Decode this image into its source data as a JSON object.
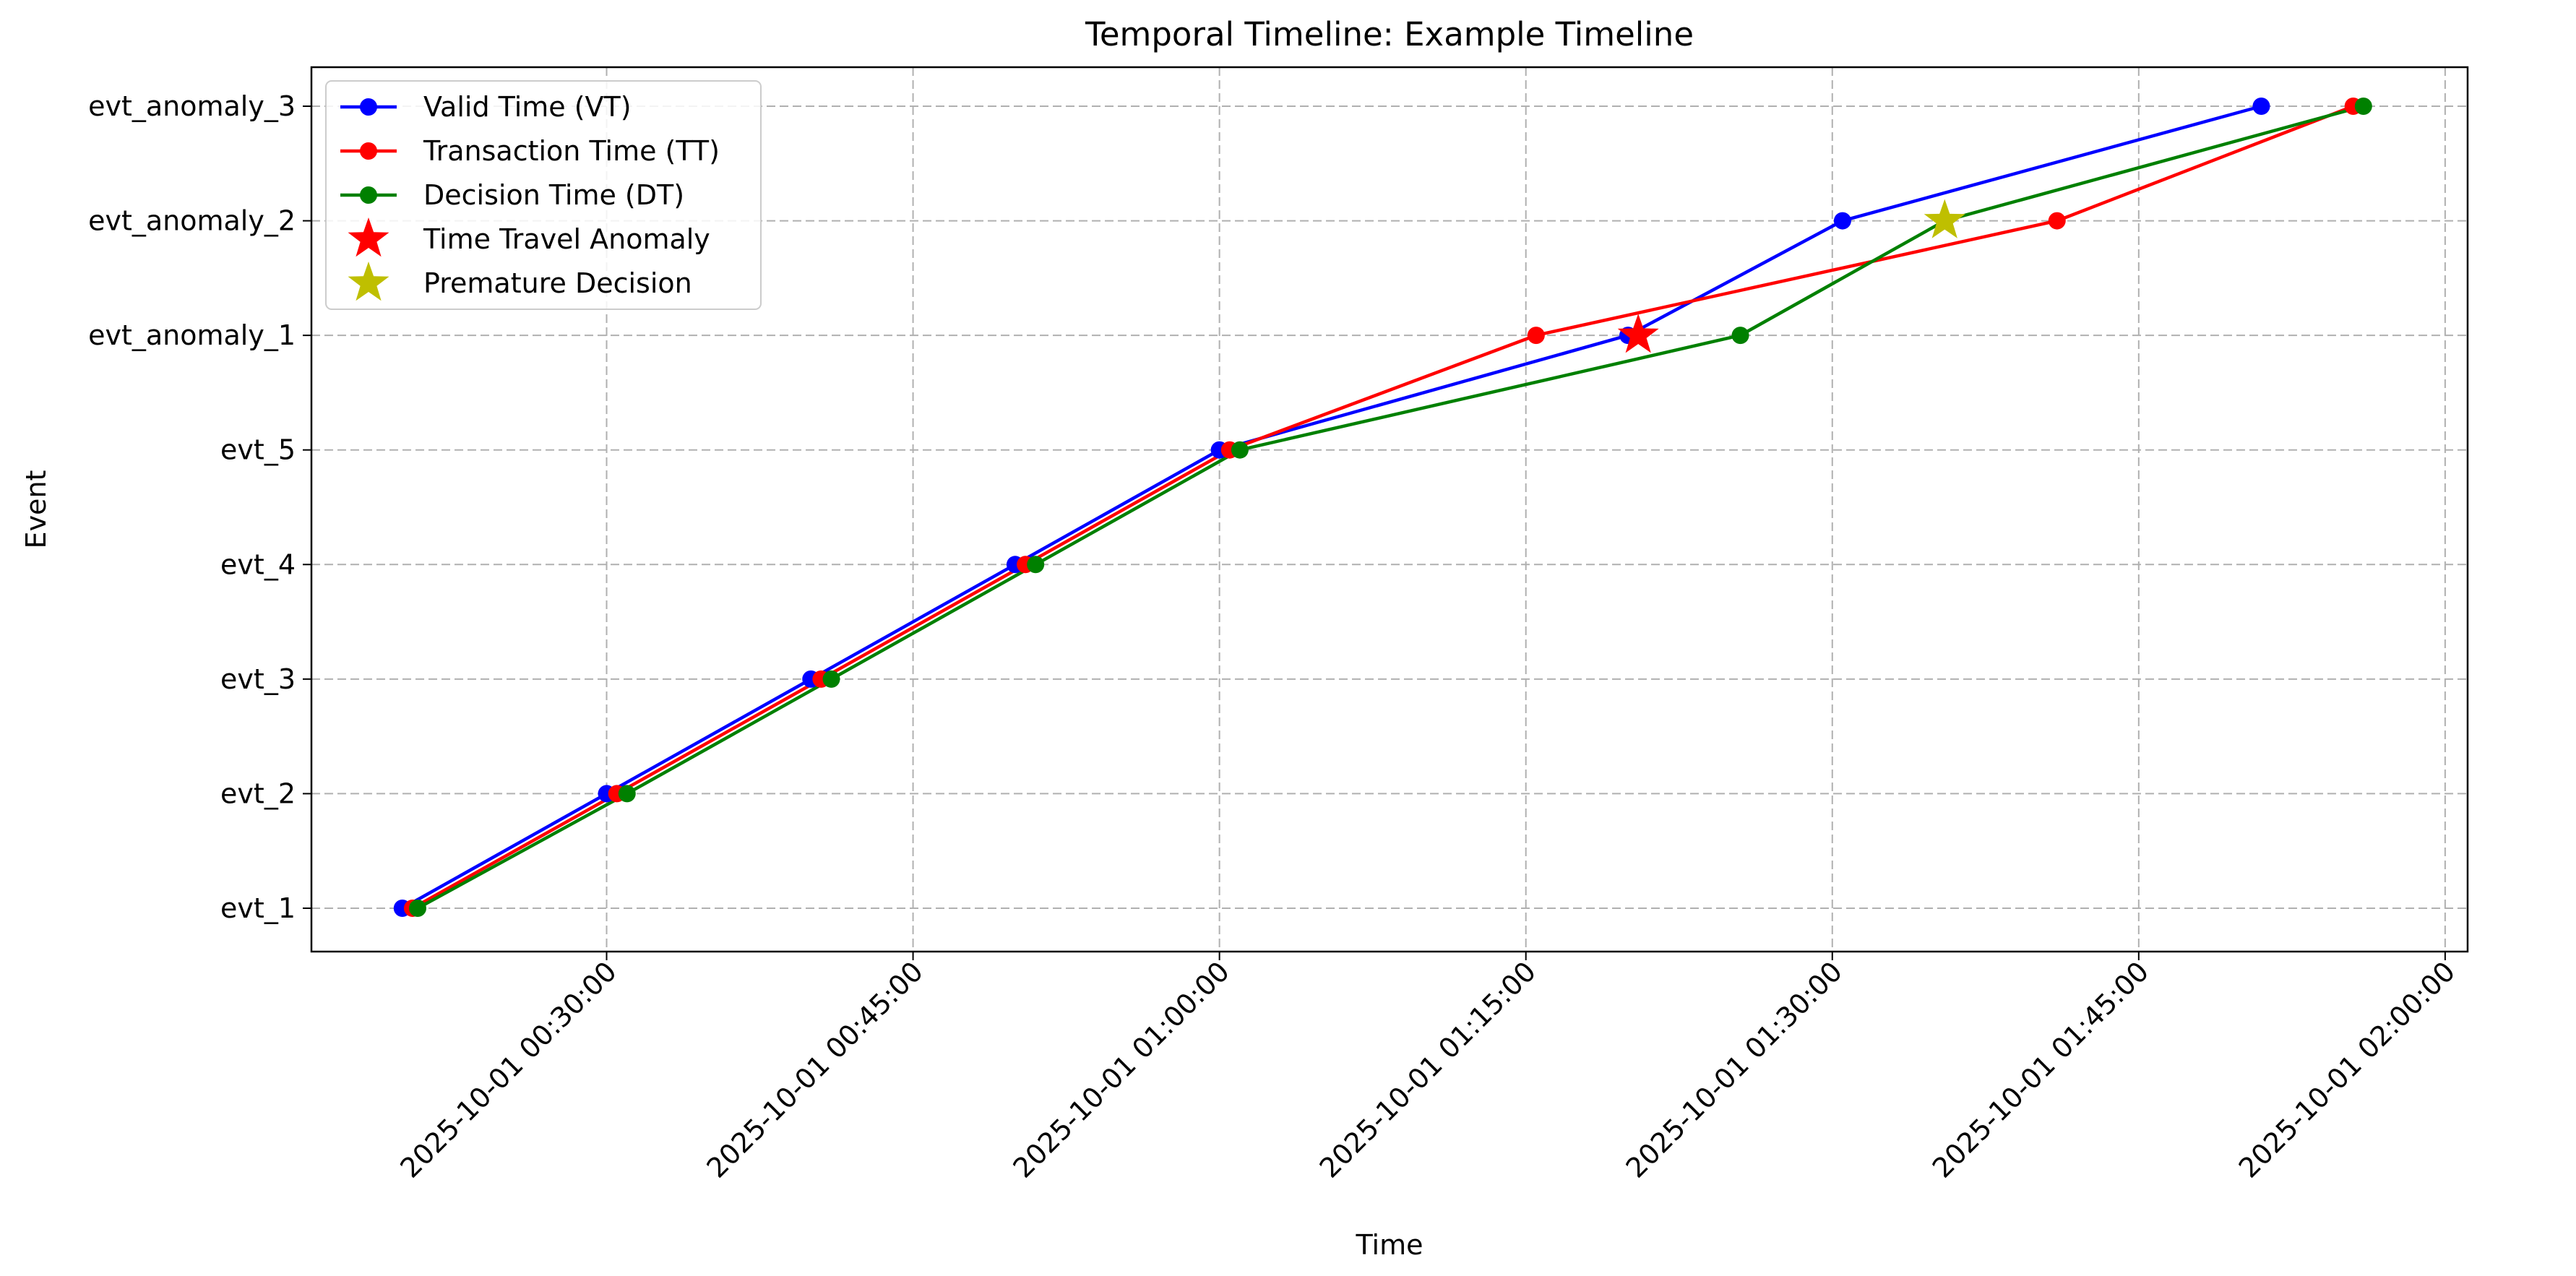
{
  "chart_data": {
    "type": "line",
    "title": "Temporal Timeline: Example Timeline",
    "xlabel": "Time",
    "ylabel": "Event",
    "categories": [
      "evt_1",
      "evt_2",
      "evt_3",
      "evt_4",
      "evt_5",
      "evt_anomaly_1",
      "evt_anomaly_2",
      "evt_anomaly_3"
    ],
    "x_ticks": [
      "2025-10-01 00:30:00",
      "2025-10-01 00:45:00",
      "2025-10-01 01:00:00",
      "2025-10-01 01:15:00",
      "2025-10-01 01:30:00",
      "2025-10-01 01:45:00",
      "2025-10-01 02:00:00"
    ],
    "xlim": [
      "2025-10-01 00:15:33",
      "2025-10-01 02:01:06"
    ],
    "grid": true,
    "legend_position": "top-left",
    "series": [
      {
        "name": "Valid Time (VT)",
        "color": "#0000ff",
        "marker": "circle",
        "x": [
          "2025-10-01 00:20:00",
          "2025-10-01 00:30:00",
          "2025-10-01 00:40:00",
          "2025-10-01 00:50:00",
          "2025-10-01 01:00:00",
          "2025-10-01 01:20:00",
          "2025-10-01 01:30:30",
          "2025-10-01 01:51:00"
        ],
        "y": [
          "evt_1",
          "evt_2",
          "evt_3",
          "evt_4",
          "evt_5",
          "evt_anomaly_1",
          "evt_anomaly_2",
          "evt_anomaly_3"
        ]
      },
      {
        "name": "Transaction Time (TT)",
        "color": "#ff0000",
        "marker": "circle",
        "x": [
          "2025-10-01 00:20:30",
          "2025-10-01 00:30:30",
          "2025-10-01 00:40:30",
          "2025-10-01 00:50:30",
          "2025-10-01 01:00:30",
          "2025-10-01 01:15:30",
          "2025-10-01 01:41:00",
          "2025-10-01 01:55:30"
        ],
        "y": [
          "evt_1",
          "evt_2",
          "evt_3",
          "evt_4",
          "evt_5",
          "evt_anomaly_1",
          "evt_anomaly_2",
          "evt_anomaly_3"
        ]
      },
      {
        "name": "Decision Time (DT)",
        "color": "#008000",
        "marker": "circle",
        "x": [
          "2025-10-01 00:20:45",
          "2025-10-01 00:31:00",
          "2025-10-01 00:41:00",
          "2025-10-01 00:51:00",
          "2025-10-01 01:01:00",
          "2025-10-01 01:25:30",
          "2025-10-01 01:35:30",
          "2025-10-01 01:56:00"
        ],
        "y": [
          "evt_1",
          "evt_2",
          "evt_3",
          "evt_4",
          "evt_5",
          "evt_anomaly_1",
          "evt_anomaly_2",
          "evt_anomaly_3"
        ]
      }
    ],
    "markers": [
      {
        "name": "Time Travel Anomaly",
        "color": "#ff0000",
        "marker": "star",
        "x": "2025-10-01 01:20:30",
        "y": "evt_anomaly_1"
      },
      {
        "name": "Premature Decision",
        "color": "#bfbf00",
        "marker": "star",
        "x": "2025-10-01 01:35:30",
        "y": "evt_anomaly_2"
      }
    ]
  }
}
